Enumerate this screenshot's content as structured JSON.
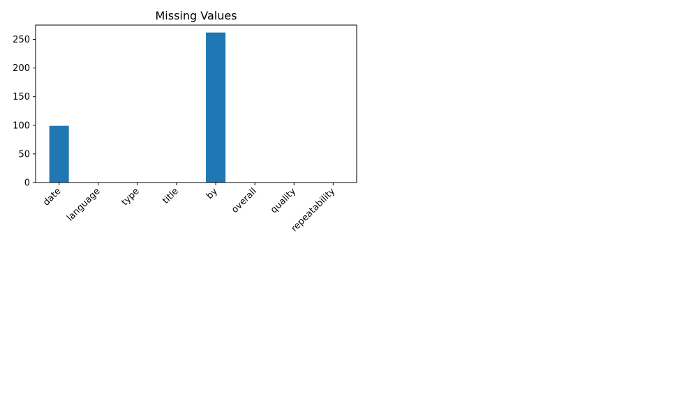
{
  "chart_data": {
    "type": "bar",
    "title": "Missing Values",
    "xlabel": "",
    "ylabel": "",
    "categories": [
      "date",
      "language",
      "type",
      "title",
      "by",
      "overall",
      "quality",
      "repeatability"
    ],
    "values": [
      99,
      0,
      0,
      0,
      262,
      0,
      0,
      0
    ],
    "ylim": [
      0,
      275
    ],
    "yticks": [
      0,
      50,
      100,
      150,
      200,
      250
    ],
    "grid": false,
    "legend": "none",
    "bar_color": "#1f77b4"
  }
}
